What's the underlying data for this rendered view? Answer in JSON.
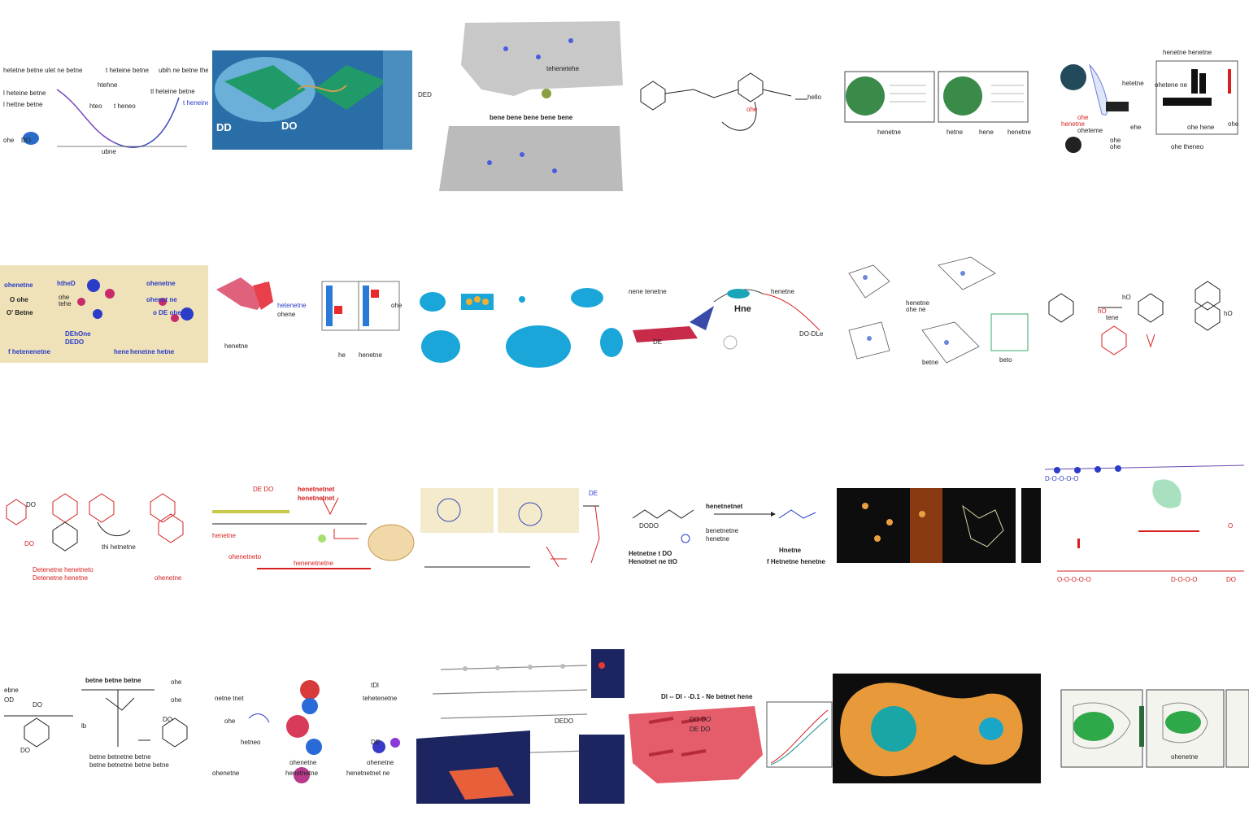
{
  "grid": {
    "rows": 4,
    "cols": 6
  },
  "tiles": [
    {
      "id": "r1c1",
      "labels": [
        "hetetne betne ulet ne betne",
        "t heteine betne",
        "ubih ne betne theneiu",
        "l heteine betne",
        "l hettne betne",
        "htehne",
        "tl heteine betne",
        "t heneo",
        "t heneine",
        "hteo",
        "ubne",
        "ohe",
        "DO"
      ]
    },
    {
      "id": "r1c2",
      "labels": [
        "DD",
        "DO"
      ]
    },
    {
      "id": "r1c3",
      "labels": [
        "DED",
        "tehenetehe",
        "bene bene bene bene bene"
      ]
    },
    {
      "id": "r1c4",
      "labels": [
        "hello",
        "ohe"
      ]
    },
    {
      "id": "r1c5",
      "labels": [
        "henetne",
        "hetne",
        "hene",
        "henetne"
      ]
    },
    {
      "id": "r1c6",
      "labels": [
        "hetetne",
        "ohe",
        "henetne",
        "oheteme",
        "ohe",
        "ohe",
        "ehe",
        "ohe theneo",
        "ohe",
        "ohe hene",
        "ohetene ne",
        "henetne henetne"
      ]
    },
    {
      "id": "r2c1",
      "labels": [
        "ohenetne",
        "htheD",
        "O ohe",
        "ohe",
        "tehe",
        "O' Betne",
        "DEhOne",
        "DEDO",
        "ohenetne",
        "ohenet ne",
        "o DE ohe",
        "f hetenenetne",
        "henetne hetne",
        "hene"
      ]
    },
    {
      "id": "r2c2",
      "labels": [
        "hetenetne",
        "ohene",
        "henetne",
        "ohe",
        "he",
        "henetne"
      ]
    },
    {
      "id": "r2c3",
      "labels": []
    },
    {
      "id": "r2c4",
      "labels": [
        "nene tenetne",
        "henetne",
        "Hne",
        "DE",
        "DO-DLe"
      ]
    },
    {
      "id": "r2c5",
      "labels": [
        "henetne",
        "ohe ne",
        "betne",
        "beto"
      ]
    },
    {
      "id": "r2c6",
      "labels": [
        "hO",
        "tene",
        "hO",
        "hO"
      ]
    },
    {
      "id": "r3c1",
      "labels": [
        "DO",
        "DO",
        "thi hetnetne",
        "Detenetne henetneto",
        "Detenetne henetne",
        "ohenetne"
      ]
    },
    {
      "id": "r3c2",
      "labels": [
        "DE DO",
        "henetnetnet",
        "henetnetnet",
        "henetne",
        "ohenetneto",
        "henenetnetne"
      ]
    },
    {
      "id": "r3c3",
      "labels": [
        "DE"
      ]
    },
    {
      "id": "r3c4",
      "labels": [
        "henetnetnet",
        "DODO",
        "benetnetne",
        "henetne",
        "Hetnetne t DO",
        "Henotnet ne ttO",
        "Hnetne",
        "f Hetnetne henetne"
      ]
    },
    {
      "id": "r3c5",
      "labels": []
    },
    {
      "id": "r3c6",
      "labels": [
        "D-O-O-O-O",
        "O",
        "O-O-O-O-O",
        "D-O-O-O",
        "DO"
      ]
    },
    {
      "id": "r4c1",
      "labels": [
        "betne betne betne",
        "ohe",
        "ebne",
        "ohe",
        "OD",
        "DO",
        "DO",
        "lb",
        "DO",
        "betne betnetne betne",
        "betne betnetne betne betne"
      ]
    },
    {
      "id": "r4c2",
      "labels": [
        "netne tnet",
        "ohe",
        "hetneo",
        "tDl",
        "tehetenetne",
        "DE",
        "ohenetne",
        "henetnetne",
        "ohenetne",
        "henetnetnet ne",
        "ohenetne"
      ]
    },
    {
      "id": "r4c3",
      "labels": [
        "DEDO"
      ]
    },
    {
      "id": "r4c4",
      "labels": [
        "Dl -- Dl - -D.1 - Ne betnet hene",
        "DO DO",
        "DE DO"
      ]
    },
    {
      "id": "r4c5",
      "labels": []
    },
    {
      "id": "r4c6",
      "labels": [
        "ohenetne"
      ]
    }
  ],
  "colors": {
    "blue": "#2a3cc8",
    "red": "#d62020",
    "teal": "#1aa6b8",
    "green": "#2fa84a",
    "orange": "#f08a24",
    "navy": "#1c2560"
  }
}
